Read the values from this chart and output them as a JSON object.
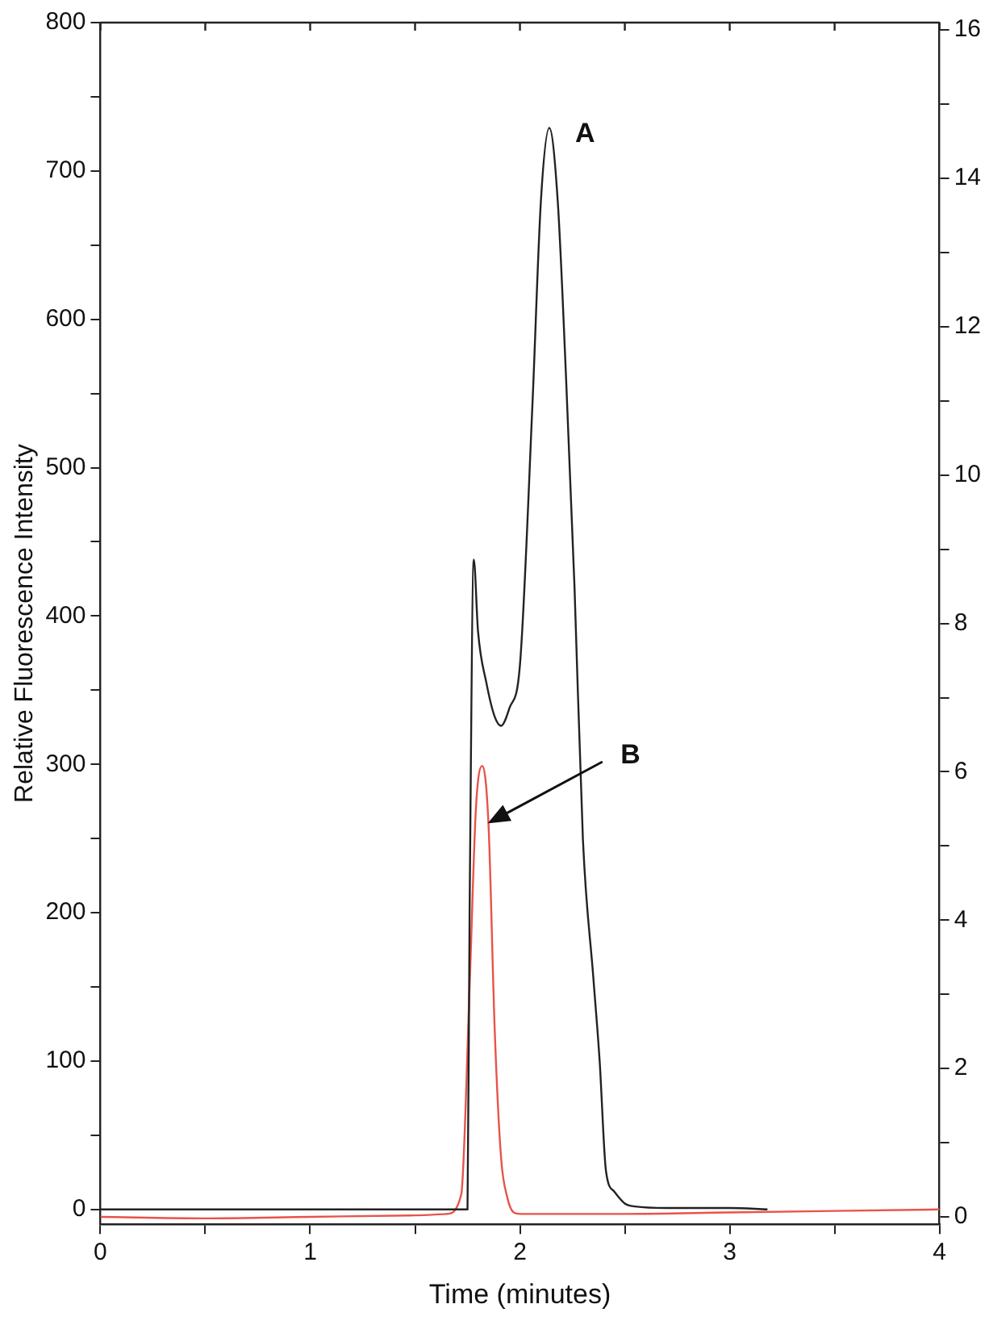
{
  "chart_data": {
    "type": "line",
    "xlabel": "Time (minutes)",
    "ylabel": "Relative Fluorescence Intensity",
    "xlim": [
      0,
      4
    ],
    "xticks": [
      0,
      {
        "value": 0.5,
        "label": null
      },
      1,
      {
        "value": 1.5,
        "label": null
      },
      2,
      {
        "value": 2.5,
        "label": null
      },
      3,
      {
        "value": 3.5,
        "label": null
      },
      4
    ],
    "ylim": [
      -10,
      800
    ],
    "yticks": [
      0,
      {
        "value": 50,
        "label": null
      },
      100,
      {
        "value": 150,
        "label": null
      },
      200,
      {
        "value": 250,
        "label": null
      },
      300,
      {
        "value": 350,
        "label": null
      },
      400,
      {
        "value": 450,
        "label": null
      },
      500,
      {
        "value": 550,
        "label": null
      },
      600,
      {
        "value": 650,
        "label": null
      },
      700,
      {
        "value": 750,
        "label": null
      },
      800
    ],
    "y2lim": [
      -0.1,
      16.1
    ],
    "y2ticks": [
      {
        "value": 0,
        "label": "0"
      },
      {
        "value": 1,
        "label": null
      },
      {
        "value": 2,
        "label": "2"
      },
      {
        "value": 3,
        "label": null
      },
      {
        "value": 4,
        "label": "4"
      },
      {
        "value": 5,
        "label": null
      },
      {
        "value": 6,
        "label": "6"
      },
      {
        "value": 7,
        "label": null
      },
      {
        "value": 8,
        "label": "8"
      },
      {
        "value": 9,
        "label": null
      },
      10,
      {
        "value": 11,
        "label": null
      },
      12,
      {
        "value": 13,
        "label": null
      },
      14,
      {
        "value": 15,
        "label": null
      },
      16
    ],
    "series": [
      {
        "color": "#222222",
        "x": [
          0,
          1.0,
          1.75,
          1.76,
          1.78,
          1.8,
          1.84,
          1.88,
          1.91,
          1.95,
          2.0,
          2.06,
          2.1,
          2.14,
          2.18,
          2.22,
          2.26,
          2.3,
          2.35,
          2.38,
          2.41,
          2.45,
          2.5,
          2.55,
          2.7,
          3.0,
          3.18
        ],
        "values": [
          0,
          0,
          0,
          200,
          438,
          390,
          355,
          332,
          326,
          338,
          367,
          544,
          680,
          729,
          680,
          560,
          420,
          250,
          156,
          100,
          26,
          12,
          4,
          2,
          1,
          1,
          0
        ]
      },
      {
        "color": "#e8534a",
        "x": [
          0,
          0.5,
          1.0,
          1.5,
          1.65,
          1.72,
          1.76,
          1.79,
          1.82,
          1.85,
          1.88,
          1.91,
          1.94,
          1.97,
          2.0,
          2.5,
          3.0,
          3.5,
          4.0
        ],
        "values": [
          -5,
          -6,
          -5,
          -4,
          -3,
          10,
          150,
          270,
          299,
          260,
          120,
          35,
          8,
          -2,
          -3,
          -3,
          -2,
          -1,
          0
        ]
      }
    ],
    "annotations": [
      {
        "text": "A",
        "x": 2.14,
        "y": 729
      },
      "B"
    ],
    "grid": false,
    "legend": false,
    "marker": "none",
    "line_style": "solid"
  }
}
